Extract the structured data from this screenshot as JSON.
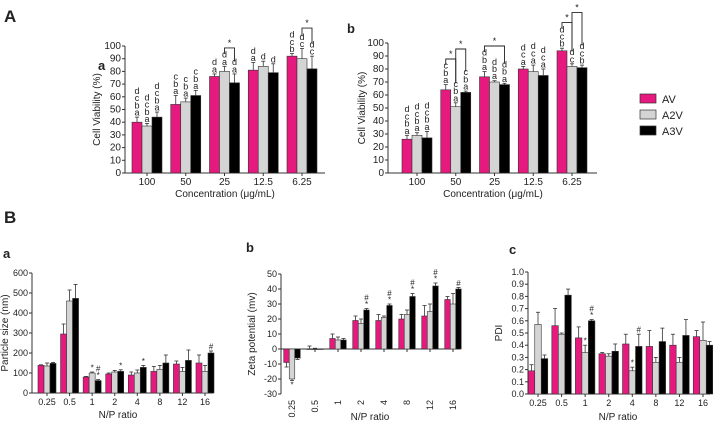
{
  "panels": {
    "A": "A",
    "B": "B"
  },
  "legend": [
    {
      "name": "AV",
      "color": "#e6197e"
    },
    {
      "name": "A2V",
      "color": "#d4d4d4"
    },
    {
      "name": "A3V",
      "color": "#000000"
    }
  ],
  "chart_data": [
    {
      "id": "Aa",
      "label": "a",
      "type": "bar",
      "ylabel": "Cell Viability (%)",
      "xlabel": "Concentration (μg/mL)",
      "ylim": [
        0,
        100
      ],
      "yticks": [
        0,
        10,
        20,
        30,
        40,
        50,
        60,
        70,
        80,
        90,
        100
      ],
      "categories": [
        "100",
        "50",
        "25",
        "12.5",
        "6.25"
      ],
      "series": [
        {
          "name": "AV",
          "values": [
            40,
            54,
            76,
            81,
            92
          ],
          "errors": [
            4,
            7,
            2,
            6,
            2
          ],
          "letters": [
            "dcba",
            "cba",
            "da",
            "da",
            "dcb"
          ]
        },
        {
          "name": "A2V",
          "values": [
            37,
            56,
            80,
            84,
            90
          ],
          "errors": [
            2,
            3,
            4,
            4,
            8
          ],
          "letters": [
            "dcba",
            "cba",
            "da",
            "d",
            "dc"
          ]
        },
        {
          "name": "A3V",
          "values": [
            44,
            61,
            71,
            79,
            82
          ],
          "errors": [
            4,
            4,
            7,
            7,
            10
          ],
          "letters": [
            "dcba",
            "cba",
            "da",
            "d",
            "dc"
          ]
        }
      ],
      "comparisons": [
        {
          "category": "25",
          "from": "A2V",
          "to": "A3V",
          "label": "*"
        },
        {
          "category": "6.25",
          "from": "A2V",
          "to": "A3V",
          "label": "*"
        }
      ]
    },
    {
      "id": "Ab",
      "label": "b",
      "type": "bar",
      "ylabel": "Cell Viability (%)",
      "xlabel": "Concentration (μg/mL)",
      "ylim": [
        0,
        100
      ],
      "yticks": [
        0,
        10,
        20,
        30,
        40,
        50,
        60,
        70,
        80,
        90,
        100
      ],
      "categories": [
        "100",
        "50",
        "25",
        "12.5",
        "6.25"
      ],
      "series": [
        {
          "name": "AV",
          "values": [
            26,
            64,
            74,
            80,
            94
          ],
          "errors": [
            3,
            4,
            4,
            2,
            2
          ],
          "letters": [
            "dcba",
            "cba",
            "dba",
            "dca",
            "dcb"
          ]
        },
        {
          "name": "A2V",
          "values": [
            29,
            51,
            70,
            78,
            82
          ],
          "errors": [
            2,
            3,
            1,
            5,
            2
          ],
          "letters": [
            "dcba",
            "cba",
            "dba",
            "dca",
            "dc"
          ]
        },
        {
          "name": "A3V",
          "values": [
            27,
            62,
            68,
            75,
            81
          ],
          "errors": [
            5,
            1,
            1,
            5,
            2
          ],
          "letters": [
            "dcba",
            "cba",
            "dba",
            "dca",
            "dcb"
          ]
        }
      ],
      "comparisons": [
        {
          "category": "50",
          "from": "AV",
          "to": "A2V",
          "label": "*"
        },
        {
          "category": "50",
          "from": "A2V",
          "to": "A3V",
          "label": "*"
        },
        {
          "category": "25",
          "from": "AV",
          "to": "A3V",
          "label": "*"
        },
        {
          "category": "6.25",
          "from": "AV",
          "to": "A2V",
          "label": "*"
        },
        {
          "category": "6.25",
          "from": "A2V",
          "to": "A3V",
          "label": "*"
        }
      ]
    },
    {
      "id": "Ba",
      "label": "a",
      "type": "bar",
      "ylabel": "Particle size (nm)",
      "xlabel": "N/P ratio",
      "ylim": [
        0,
        600
      ],
      "yticks": [
        0,
        100,
        200,
        300,
        400,
        500,
        600
      ],
      "categories": [
        "0.25",
        "0.5",
        "1",
        "2",
        "4",
        "8",
        "12",
        "16"
      ],
      "series": [
        {
          "name": "AV",
          "values": [
            138,
            295,
            80,
            95,
            90,
            108,
            145,
            150
          ],
          "errors": [
            3,
            50,
            3,
            5,
            15,
            25,
            15,
            40
          ],
          "letters": [
            "",
            "",
            "",
            "",
            "",
            "",
            "",
            ""
          ]
        },
        {
          "name": "A2V",
          "values": [
            135,
            460,
            100,
            105,
            100,
            118,
            108,
            108
          ],
          "errors": [
            15,
            55,
            5,
            8,
            15,
            20,
            20,
            30
          ],
          "letters": [
            "",
            "",
            "*",
            "",
            "",
            "",
            "",
            ""
          ]
        },
        {
          "name": "A3V",
          "values": [
            148,
            473,
            62,
            108,
            128,
            150,
            163,
            200
          ],
          "errors": [
            5,
            70,
            5,
            8,
            10,
            40,
            52,
            10
          ],
          "letters": [
            "",
            "",
            "#*",
            "*",
            "*",
            "",
            "",
            "#"
          ]
        }
      ]
    },
    {
      "id": "Bb",
      "label": "b",
      "type": "bar",
      "ylabel": "Zeta potential (mv)",
      "xlabel": "N/P ratio",
      "ylim": [
        -30,
        50
      ],
      "yticks": [
        -30,
        -20,
        -10,
        0,
        10,
        20,
        30,
        40,
        50
      ],
      "categories": [
        "0.25",
        "0.5",
        "1",
        "2",
        "4",
        "8",
        "12",
        "16"
      ],
      "series": [
        {
          "name": "AV",
          "values": [
            -9,
            0,
            7,
            19,
            19,
            20,
            22,
            33
          ],
          "errors": [
            3,
            2,
            3,
            3,
            4,
            3,
            7,
            2
          ],
          "letters": [
            "",
            "",
            "",
            "",
            "",
            "",
            "",
            ""
          ]
        },
        {
          "name": "A2V",
          "values": [
            -20,
            0,
            6,
            17,
            21,
            23,
            25,
            30
          ],
          "errors": [
            1,
            0.5,
            2,
            3,
            1,
            3,
            5,
            7
          ],
          "letters": [
            "*",
            "",
            "",
            "",
            "",
            "",
            "",
            ""
          ]
        },
        {
          "name": "A3V",
          "values": [
            -6,
            0,
            6,
            26,
            29,
            35,
            42,
            40
          ],
          "errors": [
            1,
            0,
            1,
            1,
            1,
            2,
            2,
            1
          ],
          "letters": [
            "",
            "",
            "",
            "#*",
            "#*",
            "#*",
            "#*",
            "#"
          ]
        }
      ]
    },
    {
      "id": "Bc",
      "label": "c",
      "type": "bar",
      "ylabel": "PDI",
      "xlabel": "N/P ratio",
      "ylim": [
        0,
        1
      ],
      "yticks": [
        "0.0",
        "0.1",
        "0.2",
        "0.3",
        "0.4",
        "0.5",
        "0.6",
        "0.7",
        "0.8",
        "0.9",
        "1.0"
      ],
      "categories": [
        "0.25",
        "0.5",
        "1",
        "2",
        "4",
        "8",
        "12",
        "16"
      ],
      "series": [
        {
          "name": "AV",
          "values": [
            0.19,
            0.56,
            0.46,
            0.33,
            0.41,
            0.39,
            0.4,
            0.47
          ],
          "errors": [
            0.05,
            0.14,
            0.09,
            0.01,
            0.08,
            0.13,
            0.09,
            0.05
          ],
          "letters": [
            "",
            "",
            "",
            "",
            "",
            "",
            "",
            ""
          ]
        },
        {
          "name": "A2V",
          "values": [
            0.57,
            0.49,
            0.34,
            0.31,
            0.19,
            0.26,
            0.26,
            0.44
          ],
          "errors": [
            0.1,
            0.01,
            0.06,
            0.02,
            0.03,
            0.04,
            0.04,
            0.15
          ],
          "letters": [
            "",
            "",
            "*",
            "",
            "*",
            "",
            "",
            ""
          ]
        },
        {
          "name": "A3V",
          "values": [
            0.29,
            0.81,
            0.6,
            0.35,
            0.39,
            0.43,
            0.48,
            0.4
          ],
          "errors": [
            0.03,
            0.05,
            0.01,
            0.06,
            0.1,
            0.11,
            0.13,
            0.03
          ],
          "letters": [
            "",
            "",
            "#*",
            "",
            "#",
            "",
            "",
            ""
          ]
        }
      ]
    }
  ]
}
